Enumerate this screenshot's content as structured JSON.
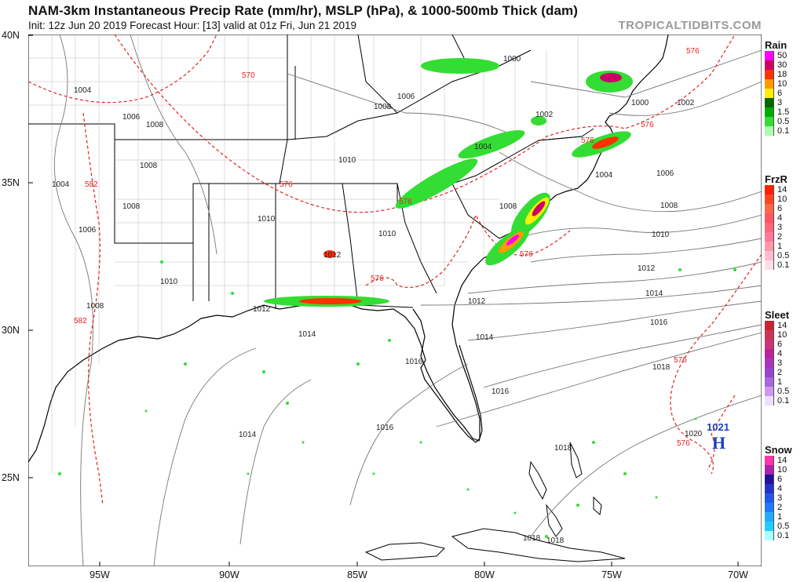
{
  "header": {
    "title": "NAM-3km Instantaneous Precip Rate (mm/hr), MSLP (hPa), & 1000-500mb Thick (dam)",
    "subtitle": "Init: 12z Jun 20 2019   Forecast Hour: [13]   valid at 01z Fri, Jun 21 2019",
    "brand": "TROPICALTIDBITS.COM"
  },
  "axes": {
    "lat_labels": [
      "40N",
      "35N",
      "30N",
      "25N"
    ],
    "lon_labels": [
      "95W",
      "90W",
      "85W",
      "80W",
      "75W",
      "70W"
    ]
  },
  "pressure_labels": [
    "1000",
    "1002",
    "1004",
    "1006",
    "1008",
    "1010",
    "1012",
    "1014",
    "1016",
    "1018",
    "1020"
  ],
  "thickness_labels": [
    "570",
    "576",
    "582"
  ],
  "high_center": {
    "value": "1021",
    "symbol": "H"
  },
  "legends": [
    {
      "title": "Rain",
      "labels": [
        "50",
        "30",
        "18",
        "10",
        "6",
        "3",
        "1.5",
        "0.5",
        "0.1"
      ],
      "colors": [
        "#ff00ff",
        "#cc0066",
        "#ff3300",
        "#ff9900",
        "#ffee00",
        "#006600",
        "#00aa00",
        "#33dd33",
        "#aaffaa"
      ]
    },
    {
      "title": "FrzR",
      "labels": [
        "14",
        "10",
        "6",
        "4",
        "3",
        "2",
        "1",
        "0.5",
        "0.1"
      ],
      "colors": [
        "#ff2200",
        "#ff4422",
        "#ff6644",
        "#ff5566",
        "#ff6677",
        "#ff7799",
        "#ff99aa",
        "#ffbbcc",
        "#ffdde6"
      ]
    },
    {
      "title": "Sleet",
      "labels": [
        "14",
        "10",
        "6",
        "4",
        "3",
        "2",
        "1",
        "0.5",
        "0.1"
      ],
      "colors": [
        "#cc2233",
        "#cc3355",
        "#cc3377",
        "#bb2299",
        "#aa33bb",
        "#9944cc",
        "#aa66dd",
        "#cc99ee",
        "#eeddff"
      ]
    },
    {
      "title": "Snow",
      "labels": [
        "14",
        "10",
        "6",
        "4",
        "3",
        "2",
        "1",
        "0.5",
        "0.1"
      ],
      "colors": [
        "#ff33aa",
        "#aa22aa",
        "#221199",
        "#2233cc",
        "#2255ee",
        "#2277ff",
        "#22aaff",
        "#22ccff",
        "#aaffff"
      ]
    }
  ]
}
